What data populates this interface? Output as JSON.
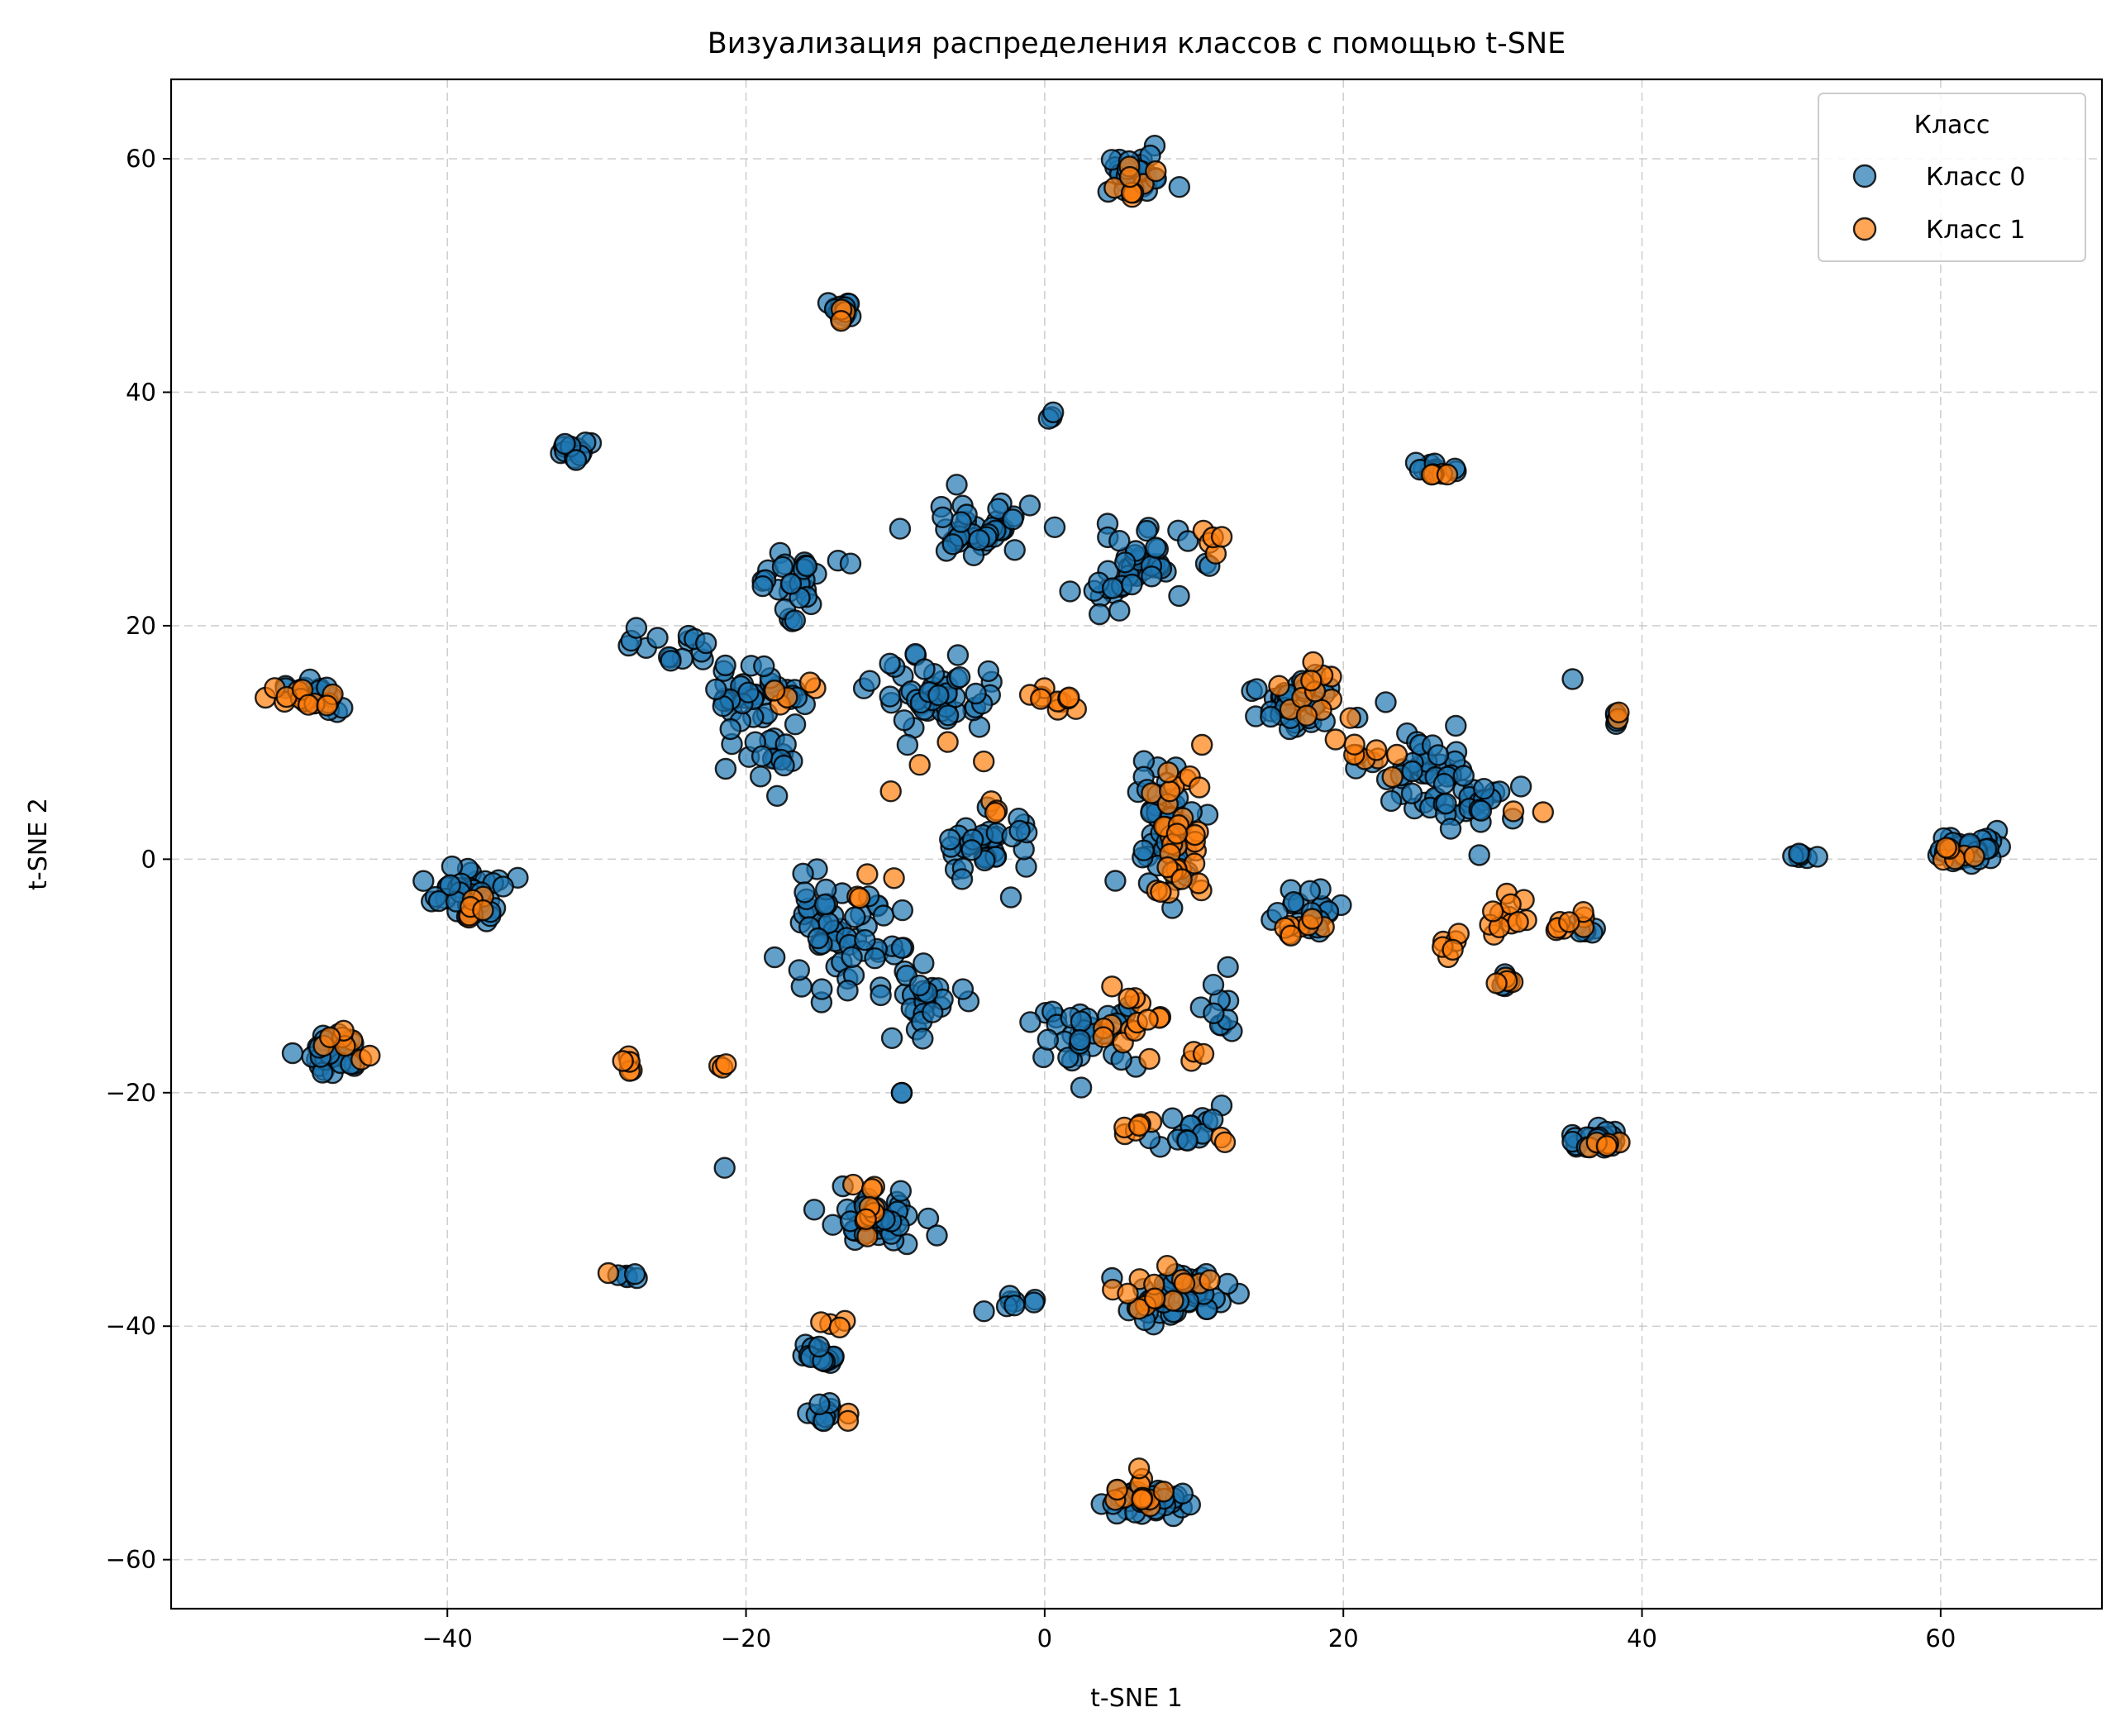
{
  "chart_data": {
    "type": "scatter",
    "title": "Визуализация распределения классов с помощью t-SNE",
    "xlabel": "t-SNE 1",
    "ylabel": "t-SNE 2",
    "xlim": [
      -58.5,
      70.8
    ],
    "ylim": [
      -64.2,
      66.8
    ],
    "xticks": [
      -40,
      -20,
      0,
      20,
      40,
      60
    ],
    "yticks": [
      -60,
      -40,
      -20,
      0,
      20,
      40,
      60
    ],
    "grid": true,
    "legend": {
      "title": "Класс",
      "placement": "top-right"
    },
    "series": [
      {
        "name": "Класс 0",
        "color": "#1f77b4",
        "clusters": [
          {
            "c": [
              6,
              58.5
            ],
            "s": [
              2.5,
              1.6
            ],
            "n": 30
          },
          {
            "c": [
              -13.5,
              47
            ],
            "s": [
              1.0,
              0.8
            ],
            "n": 14
          },
          {
            "c": [
              -31.5,
              34.8
            ],
            "s": [
              1.0,
              0.8
            ],
            "n": 12
          },
          {
            "c": [
              0.5,
              38
            ],
            "s": [
              0.3,
              0.3
            ],
            "n": 3
          },
          {
            "c": [
              26,
              33.5
            ],
            "s": [
              1.2,
              0.6
            ],
            "n": 10
          },
          {
            "c": [
              -49,
              14
            ],
            "s": [
              1.8,
              1.2
            ],
            "n": 20
          },
          {
            "c": [
              -38.5,
              -3
            ],
            "s": [
              2.2,
              2.2
            ],
            "n": 40
          },
          {
            "c": [
              -47.5,
              -16.5
            ],
            "s": [
              1.6,
              1.6
            ],
            "n": 40
          },
          {
            "c": [
              62,
              1
            ],
            "s": [
              2.3,
              1.3
            ],
            "n": 35
          },
          {
            "c": [
              51,
              0.3
            ],
            "s": [
              0.8,
              0.4
            ],
            "n": 6
          },
          {
            "c": [
              36.5,
              -24
            ],
            "s": [
              1.5,
              1.0
            ],
            "n": 20
          },
          {
            "c": [
              6.5,
              -55
            ],
            "s": [
              2.5,
              1.2
            ],
            "n": 35
          },
          {
            "c": [
              9,
              -37.5
            ],
            "s": [
              3.0,
              1.8
            ],
            "n": 45
          },
          {
            "c": [
              -11.5,
              -31
            ],
            "s": [
              3.0,
              2.0
            ],
            "n": 40
          },
          {
            "c": [
              -15,
              -42.5
            ],
            "s": [
              1.5,
              1.0
            ],
            "n": 18
          },
          {
            "c": [
              -14.5,
              -47.5
            ],
            "s": [
              1.0,
              1.0
            ],
            "n": 10
          },
          {
            "c": [
              -28.5,
              -35.5
            ],
            "s": [
              0.8,
              0.6
            ],
            "n": 5
          },
          {
            "c": [
              -21.5,
              -26.5
            ],
            "s": [
              0.1,
              0.1
            ],
            "n": 1
          },
          {
            "c": [
              -2,
              -38
            ],
            "s": [
              1.5,
              1.0
            ],
            "n": 8
          },
          {
            "c": [
              -17,
              24
            ],
            "s": [
              2.5,
              2.5
            ],
            "n": 30
          },
          {
            "c": [
              -5,
              28
            ],
            "s": [
              4.0,
              2.5
            ],
            "n": 40
          },
          {
            "c": [
              6,
              25
            ],
            "s": [
              3.5,
              3.0
            ],
            "n": 45
          },
          {
            "c": [
              -25,
              18
            ],
            "s": [
              2.5,
              1.5
            ],
            "n": 15
          },
          {
            "c": [
              -19,
              14
            ],
            "s": [
              3.0,
              2.5
            ],
            "n": 40
          },
          {
            "c": [
              -7,
              14
            ],
            "s": [
              4.0,
              3.0
            ],
            "n": 50
          },
          {
            "c": [
              -19,
              8
            ],
            "s": [
              2.5,
              2.0
            ],
            "n": 15
          },
          {
            "c": [
              -14,
              -7
            ],
            "s": [
              4.0,
              4.0
            ],
            "n": 60
          },
          {
            "c": [
              -4,
              1
            ],
            "s": [
              3.0,
              3.0
            ],
            "n": 35
          },
          {
            "c": [
              -8,
              -12
            ],
            "s": [
              2.5,
              2.5
            ],
            "n": 25
          },
          {
            "c": [
              3,
              -15
            ],
            "s": [
              3.0,
              2.5
            ],
            "n": 35
          },
          {
            "c": [
              8,
              3
            ],
            "s": [
              2.5,
              5.0
            ],
            "n": 45
          },
          {
            "c": [
              17,
              13
            ],
            "s": [
              3.0,
              3.0
            ],
            "n": 35
          },
          {
            "c": [
              18,
              -4
            ],
            "s": [
              2.0,
              2.0
            ],
            "n": 20
          },
          {
            "c": [
              25,
              8
            ],
            "s": [
              3.5,
              3.5
            ],
            "n": 40
          },
          {
            "c": [
              29,
              5
            ],
            "s": [
              2.5,
              2.5
            ],
            "n": 25
          },
          {
            "c": [
              36,
              -6
            ],
            "s": [
              1.0,
              0.6
            ],
            "n": 6
          },
          {
            "c": [
              10,
              -23
            ],
            "s": [
              2.5,
              2.0
            ],
            "n": 15
          },
          {
            "c": [
              12,
              -13
            ],
            "s": [
              1.5,
              2.5
            ],
            "n": 10
          },
          {
            "c": [
              31,
              -10.5
            ],
            "s": [
              0.6,
              0.5
            ],
            "n": 5
          },
          {
            "c": [
              35.3,
              15.5
            ],
            "s": [
              0.1,
              0.1
            ],
            "n": 1
          },
          {
            "c": [
              38.3,
              12
            ],
            "s": [
              0.4,
              0.6
            ],
            "n": 4
          },
          {
            "c": [
              -9.5,
              -20
            ],
            "s": [
              0.2,
              0.2
            ],
            "n": 2
          }
        ]
      },
      {
        "name": "Класс 1",
        "color": "#ff7f0e",
        "clusters": [
          {
            "c": [
              5.8,
              57.5
            ],
            "s": [
              1.2,
              1.5
            ],
            "n": 8
          },
          {
            "c": [
              -13.5,
              47
            ],
            "s": [
              0.6,
              0.7
            ],
            "n": 3
          },
          {
            "c": [
              26.5,
              33
            ],
            "s": [
              0.6,
              0.3
            ],
            "n": 4
          },
          {
            "c": [
              -49.5,
              13.8
            ],
            "s": [
              1.8,
              1.0
            ],
            "n": 14
          },
          {
            "c": [
              -38,
              -4.5
            ],
            "s": [
              1.2,
              1.5
            ],
            "n": 6
          },
          {
            "c": [
              -47,
              -16
            ],
            "s": [
              1.5,
              1.5
            ],
            "n": 8
          },
          {
            "c": [
              -28,
              -17.5
            ],
            "s": [
              0.8,
              0.8
            ],
            "n": 5
          },
          {
            "c": [
              -21.5,
              -18
            ],
            "s": [
              0.4,
              0.6
            ],
            "n": 3
          },
          {
            "c": [
              61,
              0.5
            ],
            "s": [
              2.5,
              1.5
            ],
            "n": 6
          },
          {
            "c": [
              37.5,
              -24.5
            ],
            "s": [
              1.2,
              0.8
            ],
            "n": 6
          },
          {
            "c": [
              6.5,
              -54.5
            ],
            "s": [
              2.0,
              2.0
            ],
            "n": 12
          },
          {
            "c": [
              8.5,
              -37
            ],
            "s": [
              3.0,
              1.5
            ],
            "n": 14
          },
          {
            "c": [
              -12,
              -30
            ],
            "s": [
              1.5,
              2.0
            ],
            "n": 10
          },
          {
            "c": [
              -14,
              -40
            ],
            "s": [
              1.3,
              0.8
            ],
            "n": 4
          },
          {
            "c": [
              -13,
              -47.5
            ],
            "s": [
              0.4,
              0.4
            ],
            "n": 2
          },
          {
            "c": [
              -29,
              -35.5
            ],
            "s": [
              0.3,
              0.3
            ],
            "n": 1
          },
          {
            "c": [
              1,
              13.5
            ],
            "s": [
              1.2,
              1.2
            ],
            "n": 10
          },
          {
            "c": [
              9,
              4
            ],
            "s": [
              1.5,
              5.0
            ],
            "n": 25
          },
          {
            "c": [
              8.5,
              -2
            ],
            "s": [
              1.2,
              1.5
            ],
            "n": 8
          },
          {
            "c": [
              6,
              -14
            ],
            "s": [
              2.5,
              3.0
            ],
            "n": 15
          },
          {
            "c": [
              6,
              -23
            ],
            "s": [
              2.0,
              1.0
            ],
            "n": 6
          },
          {
            "c": [
              17.5,
              15
            ],
            "s": [
              2.0,
              2.0
            ],
            "n": 12
          },
          {
            "c": [
              17,
              -6
            ],
            "s": [
              1.5,
              1.0
            ],
            "n": 8
          },
          {
            "c": [
              22,
              9
            ],
            "s": [
              2.5,
              3.0
            ],
            "n": 10
          },
          {
            "c": [
              27,
              -7.5
            ],
            "s": [
              1.0,
              1.0
            ],
            "n": 6
          },
          {
            "c": [
              31,
              -5
            ],
            "s": [
              1.5,
              1.5
            ],
            "n": 12
          },
          {
            "c": [
              35,
              -5.5
            ],
            "s": [
              1.2,
              1.0
            ],
            "n": 8
          },
          {
            "c": [
              31,
              -10.5
            ],
            "s": [
              0.6,
              0.5
            ],
            "n": 4
          },
          {
            "c": [
              11,
              27
            ],
            "s": [
              1.5,
              1.0
            ],
            "n": 5
          },
          {
            "c": [
              38.5,
              12
            ],
            "s": [
              0.3,
              0.5
            ],
            "n": 2
          },
          {
            "c": [
              -17,
              14
            ],
            "s": [
              2.0,
              1.5
            ],
            "n": 5
          },
          {
            "c": [
              -8,
              8
            ],
            "s": [
              2.0,
              2.0
            ],
            "n": 4
          },
          {
            "c": [
              -12,
              -3
            ],
            "s": [
              2.0,
              2.5
            ],
            "n": 4
          },
          {
            "c": [
              -3,
              4
            ],
            "s": [
              1.2,
              2.0
            ],
            "n": 3
          },
          {
            "c": [
              12,
              -24
            ],
            "s": [
              0.5,
              0.3
            ],
            "n": 2
          },
          {
            "c": [
              32.5,
              4
            ],
            "s": [
              0.8,
              0.3
            ],
            "n": 2
          },
          {
            "c": [
              10,
              -16
            ],
            "s": [
              0.5,
              1.5
            ],
            "n": 3
          }
        ]
      }
    ]
  }
}
